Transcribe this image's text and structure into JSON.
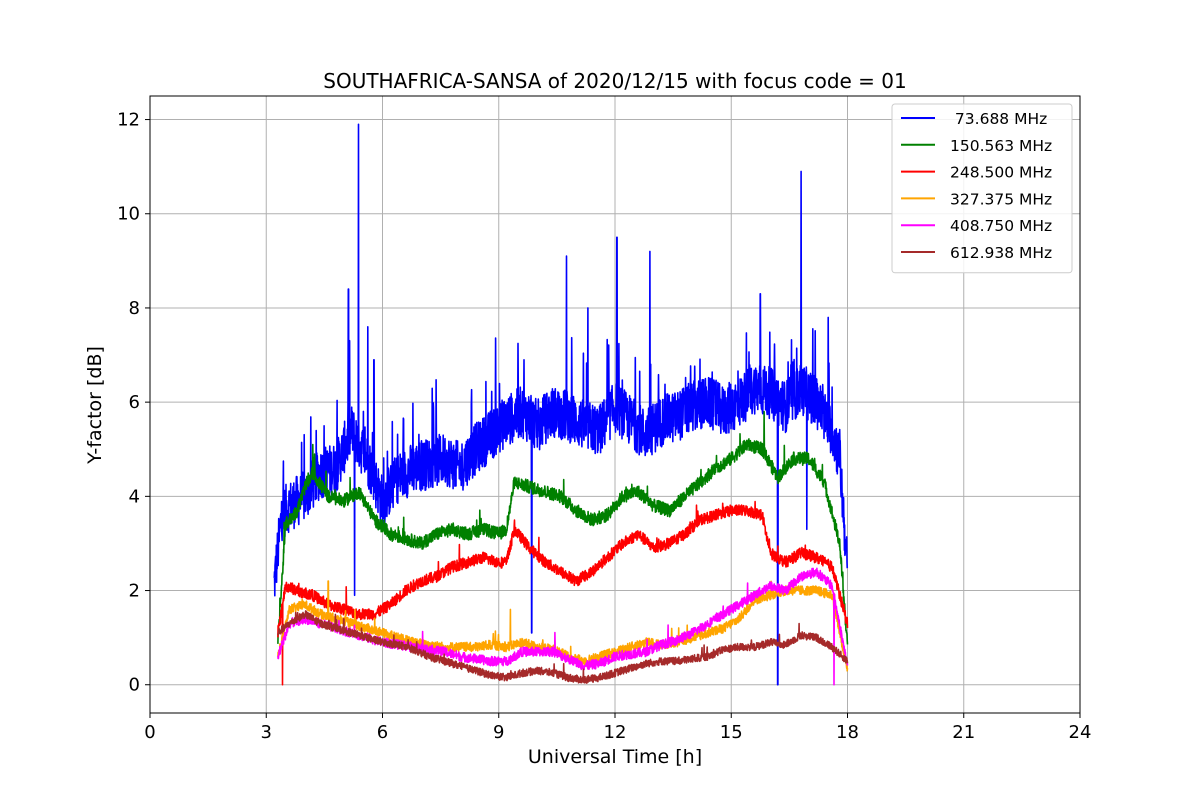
{
  "chart_data": {
    "type": "line",
    "title": "SOUTHAFRICA-SANSA of 2020/12/15 with focus code = 01",
    "xlabel": "Universal Time [h]",
    "ylabel": "Y-factor [dB]",
    "xlim": [
      0,
      24
    ],
    "ylim": [
      -0.6,
      12.5
    ],
    "xticks": [
      0,
      3,
      6,
      9,
      12,
      15,
      18,
      21,
      24
    ],
    "yticks": [
      0,
      2,
      4,
      6,
      8,
      10,
      12
    ],
    "grid": true,
    "legend_position": "top-right",
    "series": [
      {
        "name": " 73.688 MHz",
        "color": "#0000ff",
        "x": [
          3.2,
          3.4,
          3.6,
          4.0,
          4.4,
          4.8,
          5.2,
          5.6,
          6.0,
          6.4,
          6.8,
          7.2,
          7.6,
          8.0,
          8.4,
          8.8,
          9.2,
          9.6,
          10.0,
          10.4,
          10.8,
          11.2,
          11.6,
          12.0,
          12.4,
          12.8,
          13.2,
          13.6,
          14.0,
          14.4,
          14.8,
          15.2,
          15.6,
          16.0,
          16.4,
          16.8,
          17.2,
          17.6,
          17.8,
          18.0
        ],
        "y": [
          2.1,
          3.6,
          3.8,
          4.0,
          4.5,
          4.6,
          5.4,
          4.8,
          3.9,
          4.4,
          4.6,
          4.7,
          4.8,
          4.6,
          5.0,
          5.3,
          5.6,
          5.8,
          5.5,
          5.8,
          5.7,
          5.5,
          5.4,
          5.9,
          5.6,
          5.3,
          5.6,
          5.7,
          5.9,
          6.0,
          5.8,
          6.0,
          6.3,
          6.2,
          5.9,
          6.3,
          6.0,
          5.4,
          4.8,
          2.4
        ],
        "peaks": [
          [
            5.12,
            8.4
          ],
          [
            5.38,
            11.9
          ],
          [
            5.62,
            7.6
          ],
          [
            5.78,
            6.9
          ],
          [
            9.65,
            6.9
          ],
          [
            10.75,
            9.1
          ],
          [
            11.3,
            8.0
          ],
          [
            12.05,
            9.5
          ],
          [
            12.9,
            9.2
          ],
          [
            15.75,
            8.3
          ],
          [
            16.8,
            10.9
          ],
          [
            17.5,
            7.8
          ]
        ],
        "dips": [
          [
            5.28,
            1.9
          ],
          [
            9.85,
            1.1
          ],
          [
            16.2,
            0.0
          ],
          [
            16.95,
            3.3
          ]
        ]
      },
      {
        "name": "150.563 MHz",
        "color": "#008000",
        "x": [
          3.3,
          3.5,
          3.8,
          4.0,
          4.2,
          4.6,
          5.0,
          5.4,
          5.8,
          6.2,
          6.6,
          7.0,
          7.4,
          7.8,
          8.2,
          8.6,
          9.0,
          9.2,
          9.4,
          9.8,
          10.2,
          10.6,
          11.0,
          11.4,
          11.8,
          12.2,
          12.6,
          13.0,
          13.4,
          13.8,
          14.2,
          14.6,
          15.0,
          15.4,
          15.8,
          16.2,
          16.6,
          17.0,
          17.4,
          17.8,
          18.0
        ],
        "y": [
          0.9,
          3.4,
          3.7,
          4.2,
          4.5,
          4.0,
          3.9,
          4.1,
          3.5,
          3.2,
          3.1,
          3.0,
          3.2,
          3.3,
          3.2,
          3.3,
          3.2,
          3.3,
          4.3,
          4.2,
          4.1,
          4.0,
          3.7,
          3.5,
          3.6,
          4.0,
          4.1,
          3.8,
          3.7,
          4.0,
          4.3,
          4.6,
          4.8,
          5.1,
          5.0,
          4.4,
          4.8,
          4.8,
          4.3,
          3.0,
          0.8
        ],
        "peaks": [
          [
            4.2,
            5.1
          ],
          [
            15.85,
            5.8
          ]
        ],
        "dips": []
      },
      {
        "name": "248.500 MHz",
        "color": "#ff0000",
        "x": [
          3.3,
          3.5,
          3.8,
          4.2,
          4.6,
          5.0,
          5.4,
          5.8,
          6.2,
          6.6,
          7.0,
          7.4,
          7.8,
          8.2,
          8.6,
          9.0,
          9.2,
          9.4,
          9.8,
          10.2,
          10.6,
          11.0,
          11.4,
          11.8,
          12.2,
          12.6,
          13.0,
          13.4,
          13.8,
          14.2,
          14.6,
          15.0,
          15.4,
          15.8,
          16.0,
          16.4,
          16.8,
          17.2,
          17.6,
          18.0
        ],
        "y": [
          1.1,
          2.1,
          2.0,
          1.9,
          1.7,
          1.6,
          1.5,
          1.5,
          1.7,
          2.0,
          2.2,
          2.3,
          2.5,
          2.6,
          2.7,
          2.6,
          2.6,
          3.3,
          2.9,
          2.6,
          2.4,
          2.2,
          2.4,
          2.7,
          3.0,
          3.2,
          2.9,
          3.0,
          3.2,
          3.5,
          3.6,
          3.7,
          3.7,
          3.6,
          2.8,
          2.6,
          2.8,
          2.7,
          2.5,
          1.3
        ],
        "peaks": [],
        "dips": [
          [
            3.42,
            0.0
          ]
        ]
      },
      {
        "name": "327.375 MHz",
        "color": "#ffa500",
        "x": [
          3.3,
          3.6,
          4.0,
          4.4,
          4.8,
          5.2,
          5.6,
          6.0,
          6.4,
          6.8,
          7.2,
          7.6,
          8.0,
          8.4,
          8.8,
          9.2,
          9.6,
          10.0,
          10.4,
          10.8,
          11.2,
          11.6,
          12.0,
          12.4,
          12.8,
          13.2,
          13.6,
          14.0,
          14.4,
          14.8,
          15.2,
          15.6,
          16.0,
          16.4,
          16.8,
          17.2,
          17.6,
          18.0
        ],
        "y": [
          0.6,
          1.6,
          1.7,
          1.5,
          1.4,
          1.3,
          1.2,
          1.1,
          1.0,
          0.9,
          0.85,
          0.8,
          0.8,
          0.8,
          0.85,
          0.8,
          0.9,
          0.8,
          0.75,
          0.6,
          0.5,
          0.6,
          0.7,
          0.8,
          0.9,
          0.85,
          0.9,
          1.0,
          1.1,
          1.2,
          1.4,
          1.8,
          1.9,
          2.0,
          2.0,
          2.0,
          1.9,
          0.3
        ],
        "peaks": [
          [
            4.6,
            2.2
          ],
          [
            9.3,
            1.6
          ]
        ],
        "dips": []
      },
      {
        "name": "408.750 MHz",
        "color": "#ff00ff",
        "x": [
          3.3,
          3.6,
          4.0,
          4.4,
          4.8,
          5.2,
          5.6,
          6.0,
          6.4,
          6.8,
          7.2,
          7.6,
          8.0,
          8.4,
          8.8,
          9.2,
          9.6,
          10.0,
          10.4,
          10.8,
          11.2,
          11.6,
          12.0,
          12.4,
          12.8,
          13.2,
          13.6,
          14.0,
          14.4,
          14.8,
          15.2,
          15.6,
          16.0,
          16.4,
          16.8,
          17.2,
          17.6,
          18.0
        ],
        "y": [
          0.6,
          1.3,
          1.4,
          1.3,
          1.2,
          1.1,
          1.0,
          0.9,
          0.85,
          0.8,
          0.75,
          0.7,
          0.6,
          0.55,
          0.5,
          0.5,
          0.7,
          0.7,
          0.7,
          0.55,
          0.4,
          0.45,
          0.6,
          0.65,
          0.7,
          0.85,
          0.95,
          1.1,
          1.3,
          1.5,
          1.7,
          1.9,
          2.1,
          2.0,
          2.3,
          2.4,
          2.1,
          0.4
        ],
        "peaks": [],
        "dips": [
          [
            17.65,
            0.0
          ]
        ]
      },
      {
        "name": "612.938 MHz",
        "color": "#a52a2a",
        "x": [
          3.3,
          3.6,
          4.0,
          4.4,
          4.8,
          5.2,
          5.6,
          6.0,
          6.4,
          6.8,
          7.2,
          7.6,
          8.0,
          8.4,
          8.8,
          9.2,
          9.6,
          10.0,
          10.4,
          10.8,
          11.2,
          11.6,
          12.0,
          12.4,
          12.8,
          13.2,
          13.6,
          14.0,
          14.4,
          14.8,
          15.2,
          15.6,
          16.0,
          16.4,
          16.8,
          17.2,
          17.6,
          18.0
        ],
        "y": [
          1.1,
          1.3,
          1.5,
          1.3,
          1.2,
          1.1,
          1.0,
          0.9,
          0.85,
          0.75,
          0.6,
          0.5,
          0.4,
          0.3,
          0.2,
          0.15,
          0.25,
          0.3,
          0.25,
          0.15,
          0.1,
          0.15,
          0.25,
          0.35,
          0.45,
          0.5,
          0.5,
          0.55,
          0.6,
          0.75,
          0.8,
          0.8,
          0.9,
          0.85,
          1.05,
          1.0,
          0.8,
          0.5
        ],
        "peaks": [
          [
            5.0,
            1.4
          ],
          [
            16.75,
            1.3
          ]
        ],
        "dips": []
      }
    ]
  }
}
